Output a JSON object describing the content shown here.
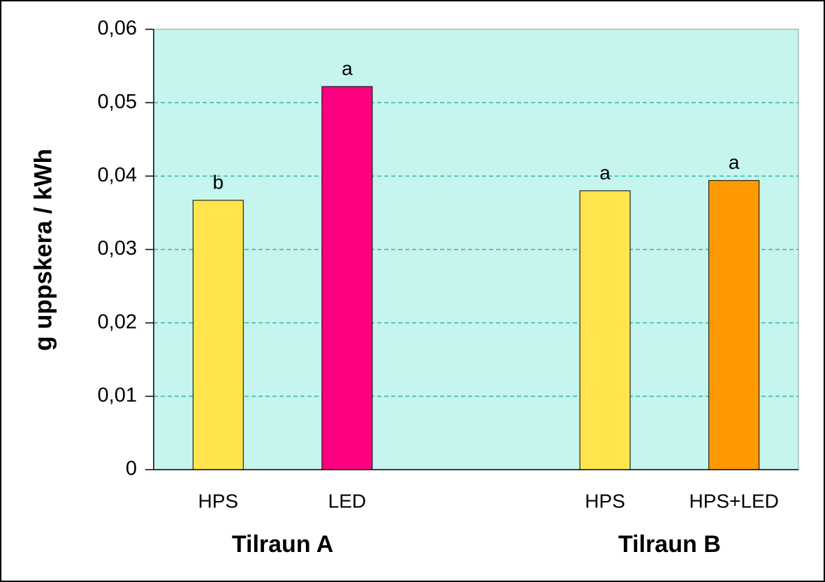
{
  "chart_data": {
    "type": "bar",
    "y_label": "g uppskera / kWh",
    "categories": [
      "HPS",
      "LED",
      null,
      "HPS",
      "HPS+LED"
    ],
    "values": [
      0.0367,
      0.0522,
      null,
      0.038,
      0.0394
    ],
    "colors": [
      "#ffe44d",
      "#ff0080",
      null,
      "#ffe44d",
      "#ff9900"
    ],
    "annotations": [
      "b",
      "a",
      null,
      "a",
      "a"
    ],
    "group_labels": [
      "Tilraun A",
      "Tilraun B"
    ],
    "ylim": [
      0,
      0.06
    ],
    "yticks": [
      0,
      {
        "value": 0.01,
        "label": "0,01"
      },
      {
        "value": 0.02,
        "label": "0,02"
      },
      {
        "value": 0.03,
        "label": "0,03"
      },
      {
        "value": 0.04,
        "label": "0,04"
      },
      {
        "value": 0.05,
        "label": "0,05"
      },
      {
        "value": 0.06,
        "label": "0,06"
      }
    ],
    "grid": true,
    "background": "#c5f5ee"
  }
}
